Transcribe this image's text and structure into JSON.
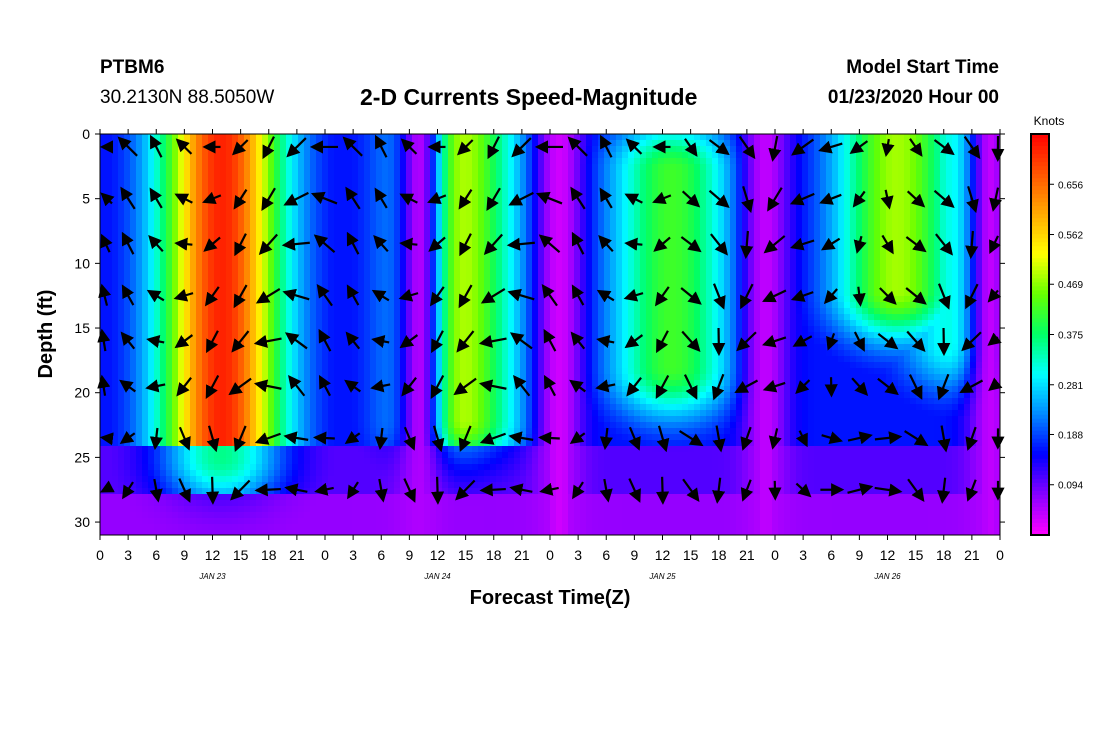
{
  "header": {
    "station_id": "PTBM6",
    "location": "30.2130N 88.5050W",
    "title": "2-D Currents Speed-Magnitude",
    "model_start_label": "Model Start Time",
    "model_start_value": "01/23/2020 Hour 00"
  },
  "chart_data": {
    "type": "heatmap",
    "title": "2-D Currents Speed-Magnitude",
    "xlabel": "Forecast Time(Z)",
    "ylabel": "Depth (ft)",
    "x_tick_labels": [
      "0",
      "3",
      "6",
      "9",
      "12",
      "15",
      "18",
      "21",
      "0",
      "3",
      "6",
      "9",
      "12",
      "15",
      "18",
      "21",
      "0",
      "3",
      "6",
      "9",
      "12",
      "15",
      "18",
      "21",
      "0",
      "3",
      "6",
      "9",
      "12",
      "15",
      "18",
      "21",
      "0"
    ],
    "x_range_hours": [
      0,
      96
    ],
    "date_labels": [
      {
        "hour": 12,
        "label": "JAN 23"
      },
      {
        "hour": 36,
        "label": "JAN 24"
      },
      {
        "hour": 60,
        "label": "JAN 25"
      },
      {
        "hour": 84,
        "label": "JAN 26"
      }
    ],
    "y_ticks": [
      0,
      5,
      10,
      15,
      20,
      25,
      30
    ],
    "y_range_ft": [
      0,
      31
    ],
    "y_inverted": true,
    "colorbar": {
      "label": "Knots",
      "ticks": [
        0.094,
        0.188,
        0.281,
        0.375,
        0.469,
        0.562,
        0.656
      ],
      "range": [
        0.0,
        0.75
      ],
      "colors": [
        "#ff00ff",
        "#8800ff",
        "#0000ff",
        "#0088ff",
        "#00ffff",
        "#00ff66",
        "#66ff00",
        "#ffff00",
        "#ffaa00",
        "#ff5500",
        "#ff0000"
      ]
    },
    "speed_peaks": [
      {
        "hour": 13,
        "depth_top": 0,
        "depth_bottom": 25,
        "speed": 0.72
      },
      {
        "hour": 38,
        "depth_top": 0,
        "depth_bottom": 22,
        "speed": 0.5
      },
      {
        "hour": 61,
        "depth_top": 3,
        "depth_bottom": 18,
        "speed": 0.42
      },
      {
        "hour": 85,
        "depth_top": 0,
        "depth_bottom": 12,
        "speed": 0.48
      },
      {
        "hour": 92,
        "depth_top": 0,
        "depth_bottom": 16,
        "speed": 0.33
      }
    ],
    "speed_lows": [
      {
        "hour": 34,
        "speed": 0.05
      },
      {
        "hour": 49,
        "speed": 0.03
      },
      {
        "hour": 71,
        "speed": 0.04
      },
      {
        "hour": 95,
        "speed": 0.04
      }
    ],
    "vector_columns_hours": [
      0,
      3,
      6,
      9,
      12,
      15,
      18,
      21,
      24,
      27,
      30,
      33,
      36,
      39,
      42,
      45,
      48,
      51,
      54,
      57,
      60,
      63,
      66,
      69,
      72,
      75,
      78,
      81,
      84,
      87,
      90,
      93,
      96
    ],
    "vector_rows_depth_ft": [
      1,
      5,
      8.5,
      12.5,
      16,
      19.5,
      23.5,
      27.5
    ]
  }
}
